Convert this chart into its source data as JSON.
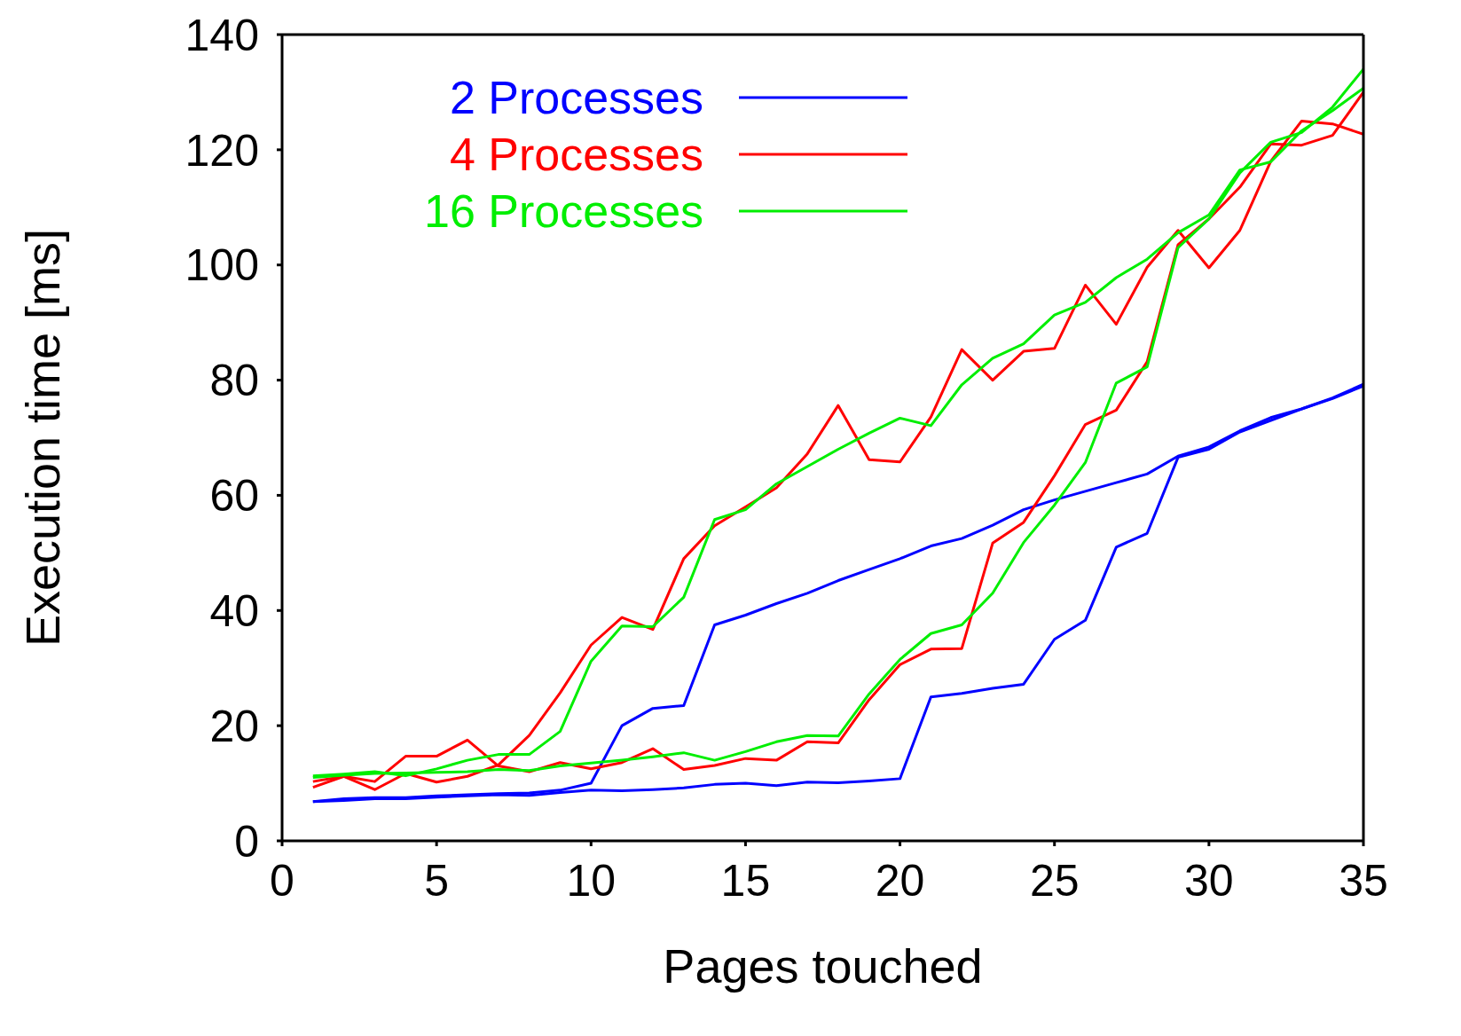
{
  "chart_data": {
    "type": "line",
    "xlabel": "Pages touched",
    "ylabel": "Execution time [ms]",
    "x": [
      1,
      2,
      3,
      4,
      5,
      6,
      7,
      8,
      9,
      10,
      11,
      12,
      13,
      14,
      15,
      16,
      17,
      18,
      19,
      20,
      21,
      22,
      23,
      24,
      25,
      26,
      27,
      28,
      29,
      30,
      31,
      32,
      33,
      34,
      35
    ],
    "series": [
      {
        "name": "2 Processes",
        "color": "#0000ff",
        "values": [
          6.8,
          7,
          7.3,
          7.3,
          7.6,
          7.8,
          8,
          7.9,
          8.4,
          8.8,
          8.7,
          8.9,
          9.2,
          9.8,
          10,
          9.6,
          10.2,
          10.1,
          10.4,
          10.8,
          25,
          25.6,
          26.5,
          27.2,
          35,
          38.3,
          51,
          53.4,
          66.6,
          68,
          71,
          73,
          75,
          76.8,
          79
        ]
      },
      {
        "color": "#0000ff",
        "values": [
          6.8,
          7.3,
          7.5,
          7.5,
          7.8,
          8,
          8.2,
          8.3,
          8.8,
          10,
          20,
          23,
          23.5,
          37.5,
          39.2,
          41.2,
          43,
          45.2,
          47.1,
          49,
          51.2,
          52.5,
          54.8,
          57.5,
          59.2,
          60.7,
          62.2,
          63.7,
          66.8,
          68.4,
          71.2,
          73.5,
          75,
          76.9,
          79.3
        ]
      },
      {
        "name": "4 Processes",
        "color": "#ff0000",
        "values": [
          9.3,
          11.2,
          8.9,
          11.7,
          10.2,
          11.2,
          13.2,
          18.3,
          25.7,
          34,
          38.8,
          36.7,
          49,
          54.7,
          58,
          61.3,
          67.2,
          75.6,
          66.2,
          65.8,
          73.6,
          85.3,
          80,
          85,
          85.5,
          96.5,
          89.7,
          99.6,
          106,
          99.5,
          106,
          118,
          125,
          124.5,
          122.7
        ]
      },
      {
        "color": "#ff0000",
        "values": [
          10.3,
          11.2,
          10.3,
          14.7,
          14.7,
          17.5,
          13,
          12,
          13.6,
          12.5,
          13.6,
          16,
          12.4,
          13.1,
          14.3,
          14,
          17.2,
          17,
          24.5,
          30.6,
          33.3,
          33.4,
          51.7,
          55.3,
          63.4,
          72.3,
          74.8,
          83.2,
          103.5,
          108,
          113.5,
          121,
          120.8,
          122.5,
          130
        ]
      },
      {
        "name": "16 Processes",
        "color": "#00ee00",
        "values": [
          11.3,
          11.6,
          12,
          11.3,
          12.5,
          14,
          15,
          15,
          19,
          31.2,
          37.3,
          37.2,
          42.3,
          55.8,
          57.5,
          62,
          65,
          68,
          70.8,
          73.4,
          72.1,
          79.2,
          83.8,
          86.3,
          91.3,
          93.5,
          97.8,
          101,
          105.6,
          108.7,
          116.5,
          117.9,
          123.3,
          126.8,
          130.7
        ]
      },
      {
        "color": "#00ee00",
        "values": [
          11,
          11.4,
          11.7,
          11.8,
          11.9,
          12,
          12.4,
          12.2,
          13,
          13.5,
          14,
          14.6,
          15.3,
          14,
          15.5,
          17.2,
          18.3,
          18.2,
          25.5,
          31.5,
          36,
          37.5,
          43,
          51.8,
          58.3,
          65.7,
          79.5,
          82.3,
          103,
          108,
          116,
          121.3,
          123,
          127.4,
          134
        ]
      }
    ],
    "xlim": [
      0,
      35
    ],
    "xticks": [
      0,
      5,
      10,
      15,
      20,
      25,
      30,
      35
    ],
    "ylim": [
      0,
      140
    ],
    "yticks": [
      0,
      20,
      40,
      60,
      80,
      100,
      120,
      140
    ],
    "legend": "top left",
    "marker": "none",
    "line_style": "solid",
    "grid": false
  }
}
